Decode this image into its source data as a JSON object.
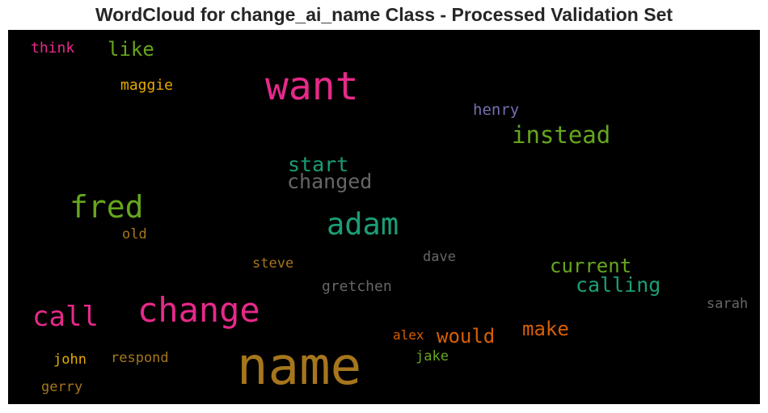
{
  "chart_data": {
    "type": "wordcloud",
    "title": "WordCloud for change_ai_name Class - Processed Validation Set",
    "background": "#000000",
    "words": [
      {
        "text": "name",
        "color": "#a6761d"
      },
      {
        "text": "want",
        "color": "#e7298a"
      },
      {
        "text": "change",
        "color": "#e7298a"
      },
      {
        "text": "fred",
        "color": "#66a61e"
      },
      {
        "text": "adam",
        "color": "#1b9e77"
      },
      {
        "text": "call",
        "color": "#e7298a"
      },
      {
        "text": "instead",
        "color": "#66a61e"
      },
      {
        "text": "calling",
        "color": "#1b9e77"
      },
      {
        "text": "current",
        "color": "#66a61e"
      },
      {
        "text": "changed",
        "color": "#666666"
      },
      {
        "text": "start",
        "color": "#1b9e77"
      },
      {
        "text": "would",
        "color": "#d95f02"
      },
      {
        "text": "make",
        "color": "#d95f02"
      },
      {
        "text": "like",
        "color": "#66a61e"
      },
      {
        "text": "henry",
        "color": "#7570b3"
      },
      {
        "text": "maggie",
        "color": "#e6ab02"
      },
      {
        "text": "think",
        "color": "#e7298a"
      },
      {
        "text": "gretchen",
        "color": "#666666"
      },
      {
        "text": "steve",
        "color": "#a6761d"
      },
      {
        "text": "dave",
        "color": "#666666"
      },
      {
        "text": "sarah",
        "color": "#666666"
      },
      {
        "text": "old",
        "color": "#a6761d"
      },
      {
        "text": "alex",
        "color": "#d95f02"
      },
      {
        "text": "jake",
        "color": "#66a61e"
      },
      {
        "text": "john",
        "color": "#e6ab02"
      },
      {
        "text": "respond",
        "color": "#a6761d"
      },
      {
        "text": "gerry",
        "color": "#a6761d"
      }
    ]
  }
}
